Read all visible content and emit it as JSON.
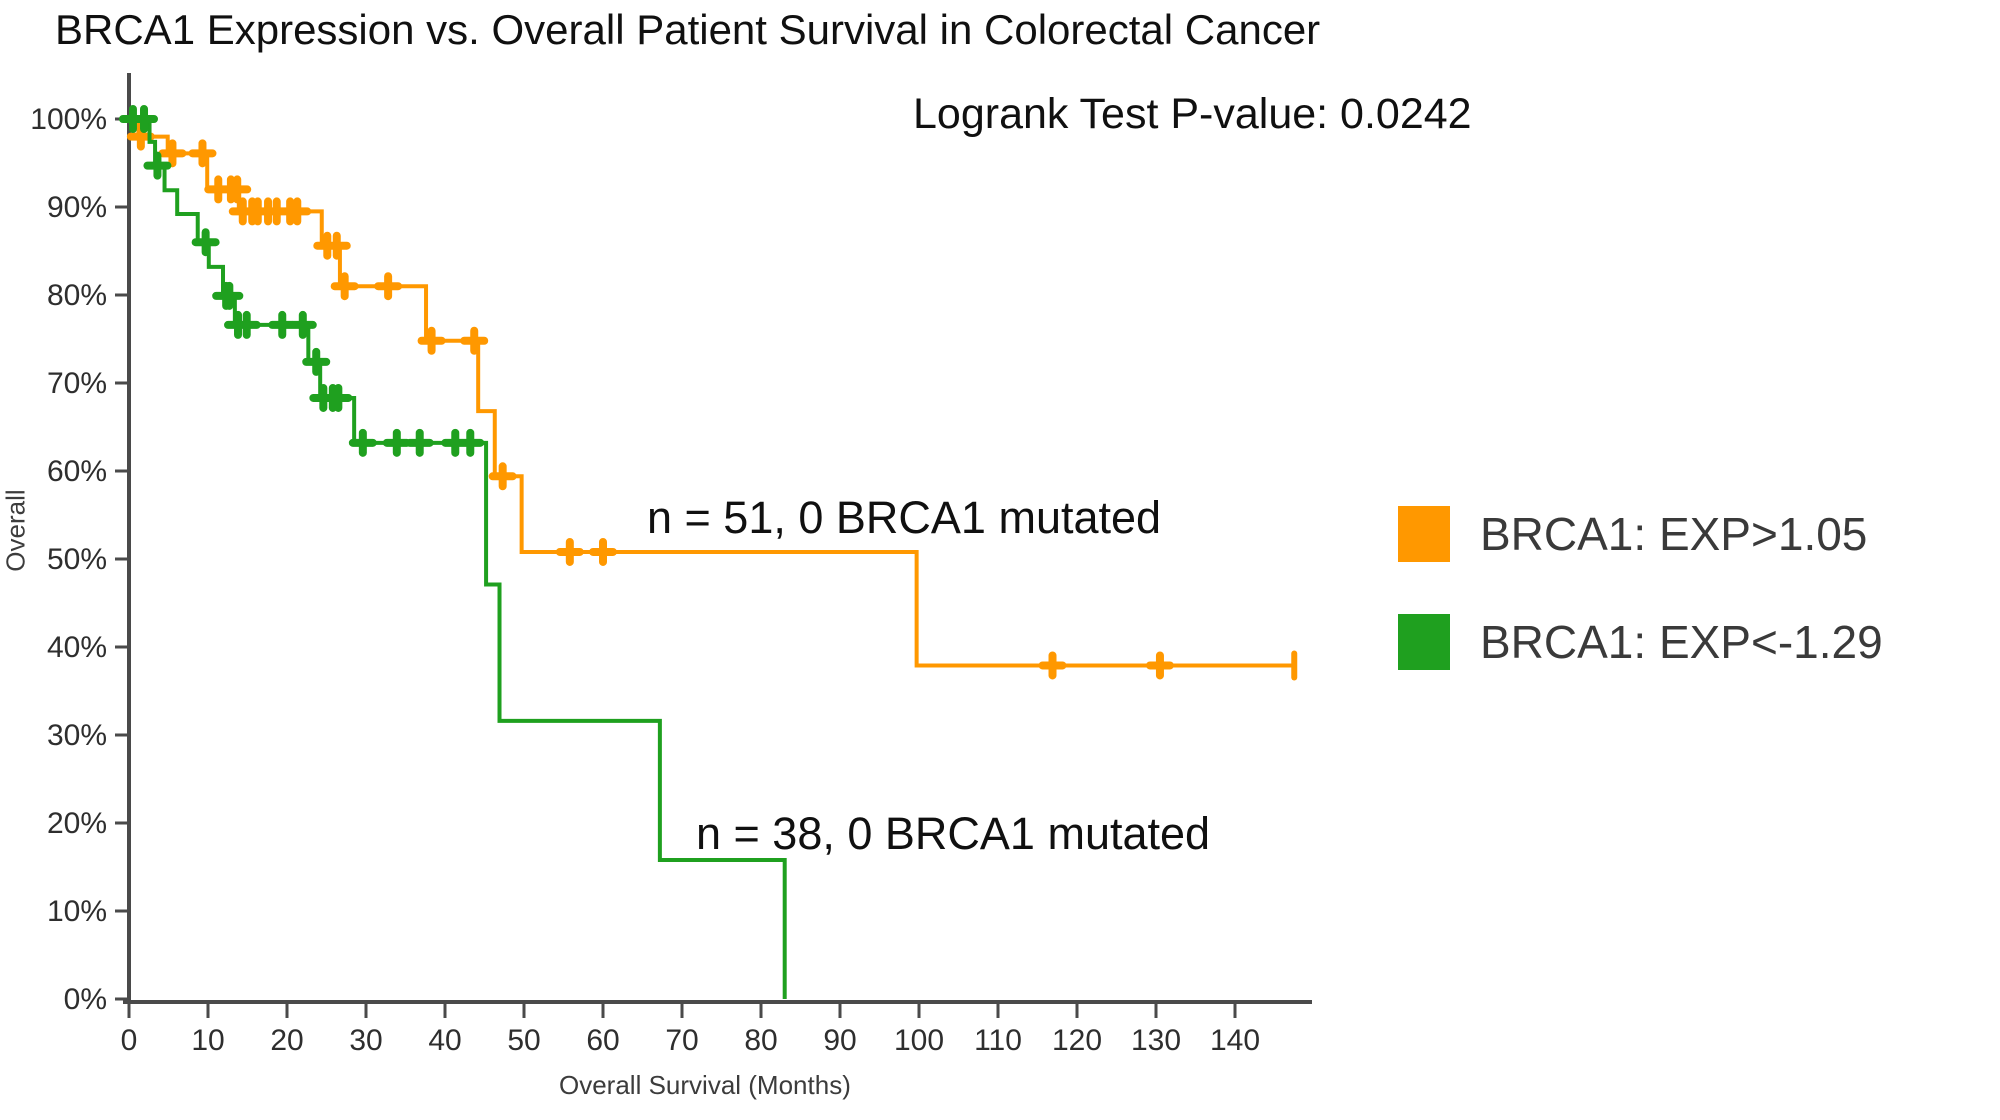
{
  "page_title": "BRCA1 Expression vs. Overall Patient Survival in Colorectal Cancer",
  "stats": {
    "logrank_label": "Logrank Test P-value: 0.0242"
  },
  "annotations": {
    "high_group": "n = 51, 0 BRCA1 mutated",
    "low_group": "n = 38, 0 BRCA1 mutated"
  },
  "legend": [
    {
      "label": "BRCA1: EXP>1.05",
      "color": "#FF9800"
    },
    {
      "label": "BRCA1: EXP<-1.29",
      "color": "#1FA01F"
    }
  ],
  "axes": {
    "x_title": "Overall Survival (Months)",
    "y_title": "Overall",
    "axis_color": "#4a4a4a",
    "tick_label_color": "#2e2e2e"
  },
  "chart_data": {
    "type": "line",
    "subtype": "kaplan_meier_step",
    "title": "BRCA1 Expression vs. Overall Patient Survival in Colorectal Cancer",
    "xlabel": "Overall Survival (Months)",
    "ylabel": "Overall",
    "xlim": [
      0,
      150
    ],
    "ylim": [
      0,
      100
    ],
    "grid": false,
    "legend_position": "right",
    "pvalue_annotation": "Logrank Test P-value: 0.0242",
    "xticks": [
      0,
      10,
      20,
      30,
      40,
      50,
      60,
      70,
      80,
      90,
      100,
      110,
      120,
      130,
      140
    ],
    "yticks": [
      {
        "value": 0,
        "label": "0%"
      },
      {
        "value": 10,
        "label": "10%"
      },
      {
        "value": 20,
        "label": "20%"
      },
      {
        "value": 30,
        "label": "30%"
      },
      {
        "value": 40,
        "label": "40%"
      },
      {
        "value": 50,
        "label": "50%"
      },
      {
        "value": 60,
        "label": "60%"
      },
      {
        "value": 70,
        "label": "70%"
      },
      {
        "value": 80,
        "label": "80%"
      },
      {
        "value": 90,
        "label": "90%"
      },
      {
        "value": 100,
        "label": "100%"
      }
    ],
    "series": [
      {
        "name": "BRCA1: EXP>1.05",
        "n": 51,
        "color": "#FF9800",
        "annotation": "n = 51, 0 BRCA1 mutated",
        "steps": [
          [
            0,
            100
          ],
          [
            1.2,
            98.0
          ],
          [
            4.9,
            96.1
          ],
          [
            9.9,
            92.0
          ],
          [
            13.9,
            89.5
          ],
          [
            24.4,
            85.6
          ],
          [
            26.7,
            81.0
          ],
          [
            37.6,
            74.8
          ],
          [
            44.2,
            66.8
          ],
          [
            46.3,
            59.4
          ],
          [
            49.7,
            50.8
          ],
          [
            99.7,
            37.9
          ]
        ],
        "end_time": 147.5,
        "end_tick": true,
        "censors": [
          [
            1.5,
            98.0
          ],
          [
            5.5,
            96.1
          ],
          [
            9.3,
            96.1
          ],
          [
            11.3,
            92.0
          ],
          [
            12.9,
            92.0
          ],
          [
            13.7,
            92.0
          ],
          [
            14.4,
            89.5
          ],
          [
            15.6,
            89.5
          ],
          [
            16.3,
            89.5
          ],
          [
            17.6,
            89.5
          ],
          [
            18.7,
            89.5
          ],
          [
            20.4,
            89.5
          ],
          [
            21.3,
            89.5
          ],
          [
            25.1,
            85.6
          ],
          [
            26.3,
            85.6
          ],
          [
            27.3,
            81.0
          ],
          [
            32.8,
            81.0
          ],
          [
            38.3,
            74.8
          ],
          [
            43.7,
            74.8
          ],
          [
            47.3,
            59.4
          ],
          [
            55.8,
            50.8
          ],
          [
            60.0,
            50.8
          ],
          [
            116.9,
            37.9
          ],
          [
            130.5,
            37.9
          ]
        ]
      },
      {
        "name": "BRCA1: EXP<-1.29",
        "n": 38,
        "color": "#1FA01F",
        "annotation": "n = 38, 0 BRCA1 mutated",
        "steps": [
          [
            0,
            100
          ],
          [
            2.6,
            97.4
          ],
          [
            3.3,
            94.7
          ],
          [
            4.5,
            91.9
          ],
          [
            6.1,
            89.2
          ],
          [
            8.7,
            86.0
          ],
          [
            10.1,
            83.2
          ],
          [
            11.9,
            79.9
          ],
          [
            13.4,
            76.6
          ],
          [
            22.7,
            72.4
          ],
          [
            24.2,
            68.3
          ],
          [
            28.5,
            63.2
          ],
          [
            45.2,
            47.1
          ],
          [
            46.9,
            31.6
          ],
          [
            67.2,
            15.8
          ],
          [
            83.0,
            0
          ]
        ],
        "end_time": 83.0,
        "end_tick": false,
        "censors": [
          [
            0.5,
            100
          ],
          [
            1.9,
            100
          ],
          [
            3.6,
            94.7
          ],
          [
            9.7,
            86.0
          ],
          [
            12.3,
            79.9
          ],
          [
            12.7,
            79.9
          ],
          [
            13.8,
            76.6
          ],
          [
            14.9,
            76.6
          ],
          [
            19.4,
            76.6
          ],
          [
            22.0,
            76.6
          ],
          [
            23.7,
            72.4
          ],
          [
            24.6,
            68.3
          ],
          [
            25.8,
            68.3
          ],
          [
            26.5,
            68.3
          ],
          [
            29.6,
            63.2
          ],
          [
            33.9,
            63.2
          ],
          [
            36.8,
            63.2
          ],
          [
            41.3,
            63.2
          ],
          [
            43.2,
            63.2
          ]
        ]
      }
    ]
  }
}
